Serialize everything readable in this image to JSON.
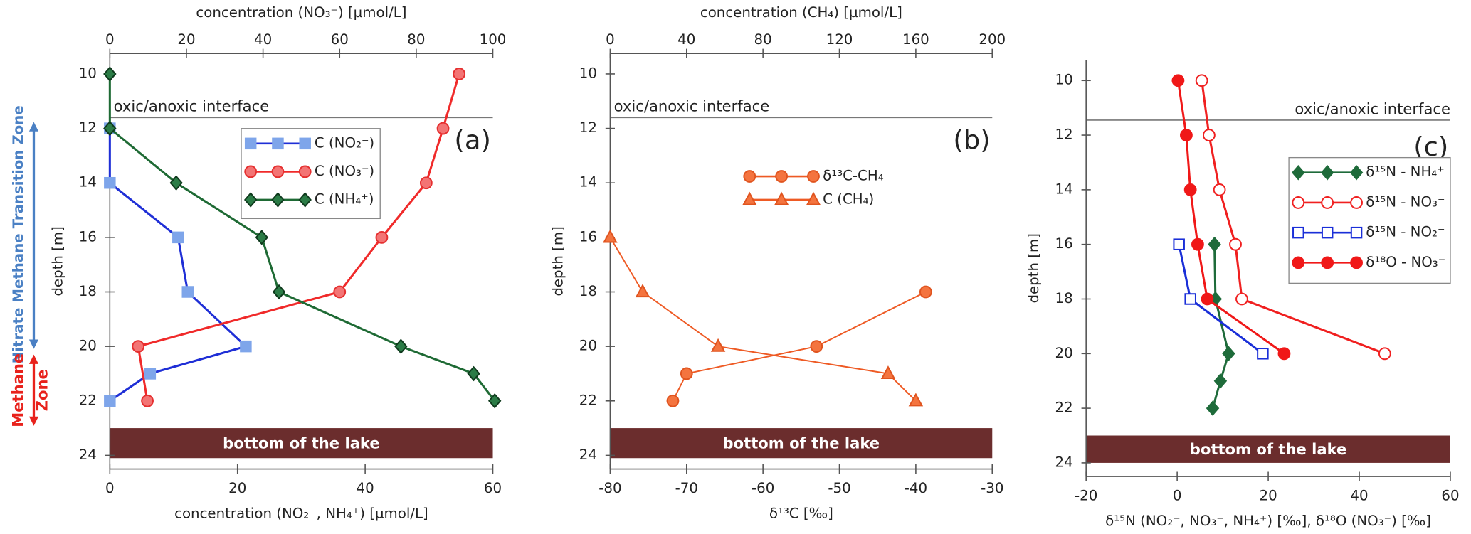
{
  "chart_data": [
    {
      "type": "line",
      "panel_label": "(a)",
      "x2label": "concentration (NO₃⁻) [µmol/L]",
      "xlabel": "concentration (NO₂⁻, NH₄⁺) [µmol/L]",
      "ylabel": "depth [m]",
      "xlim": [
        0,
        60
      ],
      "xticks": [
        0,
        20,
        40,
        60
      ],
      "x2lim": [
        0,
        100
      ],
      "x2ticks": [
        0,
        20,
        40,
        60,
        80,
        100
      ],
      "ylim": [
        9.25,
        24.5
      ],
      "yticks": [
        10,
        12,
        14,
        16,
        18,
        20,
        22,
        24
      ],
      "invert_y": true,
      "legend": "upper-center",
      "legend_box": true,
      "interface": {
        "text": "oxic/anoxic interface",
        "depth": 11.6
      },
      "lake_bottom": {
        "text": "bottom of the lake",
        "depth": [
          23,
          24.1
        ]
      },
      "zones": [
        {
          "text": "Nitrate Methane Transition Zone",
          "color": "#4a80c4"
        },
        {
          "lines": [
            "Methane",
            "Zone"
          ],
          "color": "#e8221c"
        }
      ],
      "series": [
        {
          "name": "C (NO₂⁻)",
          "axis": "x",
          "color": "#1f2fd6",
          "marker": "square",
          "filled": true,
          "marker_color": "#7ea5ea",
          "marker_edge": "#7ea5ea",
          "x": [
            0,
            0,
            10.7,
            12.2,
            21.3,
            6.3,
            0
          ],
          "y": [
            12,
            14,
            16,
            18,
            20,
            21,
            22
          ]
        },
        {
          "name": "C (NO₃⁻)",
          "axis": "x2",
          "color": "#f02a2a",
          "marker": "circle",
          "filled": true,
          "marker_color": "#f37474",
          "marker_edge": "#e53030",
          "x": [
            91.2,
            87,
            82.6,
            71,
            60,
            7.4,
            9.8
          ],
          "y": [
            10,
            12,
            14,
            16,
            18,
            20,
            22
          ]
        },
        {
          "name": "C (NH₄⁺)",
          "axis": "x",
          "color": "#1e6a34",
          "marker": "diamond",
          "filled": true,
          "marker_color": "#2b7c46",
          "marker_edge": "#0f3a1d",
          "x": [
            0,
            0,
            10.4,
            23.8,
            26.5,
            45.6,
            57,
            60.3
          ],
          "y": [
            10,
            12,
            14,
            16,
            18,
            20,
            21,
            22
          ]
        }
      ]
    },
    {
      "type": "line",
      "panel_label": "(b)",
      "x2label": "concentration (CH₄) [µmol/L]",
      "xlabel": "δ¹³C [‰]",
      "ylabel": "depth [m]",
      "xlim": [
        -80,
        -30
      ],
      "xticks": [
        -80,
        -70,
        -60,
        -50,
        -40,
        -30
      ],
      "x2lim": [
        0,
        200
      ],
      "x2ticks": [
        0,
        40,
        80,
        120,
        160,
        200
      ],
      "ylim": [
        9.25,
        24.5
      ],
      "yticks": [
        10,
        12,
        14,
        16,
        18,
        20,
        22,
        24
      ],
      "invert_y": true,
      "legend": "upper-center",
      "legend_box": false,
      "interface": {
        "text": "oxic/anoxic interface",
        "depth": 11.6
      },
      "lake_bottom": {
        "text": "bottom of the lake",
        "depth": [
          23,
          24.1
        ]
      },
      "series": [
        {
          "name": "δ¹³C-CH₄",
          "axis": "x",
          "color": "#ee5a24",
          "marker": "circle",
          "filled": true,
          "marker_color": "#f4743f",
          "marker_edge": "#e0541f",
          "x": [
            -38.7,
            -53,
            -70,
            -71.8
          ],
          "y": [
            18,
            20,
            21,
            22
          ]
        },
        {
          "name": "C (CH₄)",
          "axis": "x2",
          "color": "#ee5a24",
          "marker": "triangle",
          "filled": true,
          "marker_color": "#f4743f",
          "marker_edge": "#e0541f",
          "x": [
            0,
            17,
            56.5,
            145.5,
            160
          ],
          "y": [
            16,
            18,
            20,
            21,
            22
          ]
        }
      ]
    },
    {
      "type": "line",
      "panel_label": "(c)",
      "xlabel": "δ¹⁵N (NO₂⁻, NO₃⁻, NH₄⁺) [‰], δ¹⁸O (NO₃⁻) [‰]",
      "ylabel": "depth [m]",
      "xlim": [
        -20,
        60
      ],
      "xticks": [
        -20,
        0,
        20,
        40,
        60
      ],
      "ylim": [
        9.25,
        24.5
      ],
      "yticks": [
        10,
        12,
        14,
        16,
        18,
        20,
        22,
        24
      ],
      "invert_y": true,
      "legend": "upper-right",
      "legend_box": true,
      "interface": {
        "text": "oxic/anoxic interface",
        "depth": 11.45
      },
      "lake_bottom": {
        "text": "bottom of the lake",
        "depth": [
          23,
          24
        ]
      },
      "series": [
        {
          "name": "δ¹⁵N - NH₄⁺",
          "axis": "x",
          "color": "#1e6b3a",
          "marker": "diamond",
          "filled": true,
          "marker_color": "#1e6b3a",
          "marker_edge": "#1e6b3a",
          "x": [
            8.2,
            8.4,
            11.3,
            9.5,
            7.8
          ],
          "y": [
            16,
            18,
            20,
            21,
            22
          ]
        },
        {
          "name": "δ¹⁵N - NO₃⁻",
          "axis": "x",
          "color": "#f02020",
          "marker": "circle",
          "filled": false,
          "marker_color": "#ffffff",
          "marker_edge": "#f02020",
          "x": [
            5.4,
            7,
            9.3,
            12.8,
            14.2,
            45.6
          ],
          "y": [
            10,
            12,
            14,
            16,
            18,
            20
          ]
        },
        {
          "name": "δ¹⁵N - NO₂⁻",
          "axis": "x",
          "color": "#1a2fd8",
          "marker": "square",
          "filled": false,
          "marker_color": "#ffffff",
          "marker_edge": "#1a2fd8",
          "x": [
            0.4,
            2.9,
            18.8
          ],
          "y": [
            16,
            18,
            20
          ]
        },
        {
          "name": "δ¹⁸O - NO₃⁻",
          "axis": "x",
          "color": "#f01818",
          "marker": "circle",
          "filled": true,
          "marker_color": "#f01818",
          "marker_edge": "#f01818",
          "x": [
            0.2,
            2,
            2.9,
            4.5,
            6.6,
            23.5
          ],
          "y": [
            10,
            12,
            14,
            16,
            18,
            20
          ]
        }
      ]
    }
  ]
}
